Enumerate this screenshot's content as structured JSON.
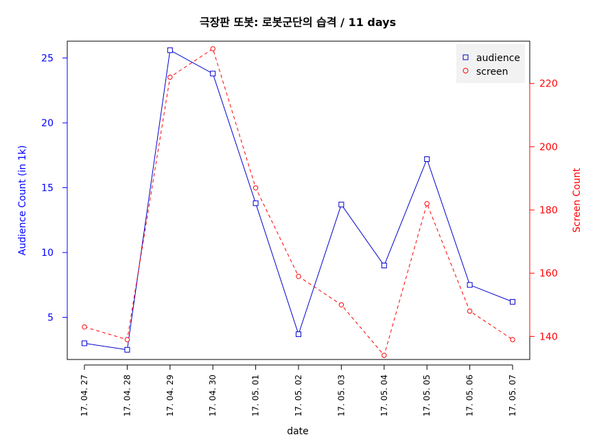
{
  "chart_data": {
    "type": "line",
    "title": "극장판 또봇: 로봇군단의 습격 / 11 days",
    "xlabel": "date",
    "ylabel_left": "Audience Count (in 1k)",
    "ylabel_right": "Screen Count",
    "categories": [
      "17. 04. 27",
      "17. 04. 28",
      "17. 04. 29",
      "17. 04. 30",
      "17. 05. 01",
      "17. 05. 02",
      "17. 05. 03",
      "17. 05. 04",
      "17. 05. 05",
      "17. 05. 06",
      "17. 05. 07"
    ],
    "series": [
      {
        "name": "audience",
        "axis": "left",
        "color": "#0000cc",
        "line_style": "solid",
        "marker": "square",
        "values": [
          3.0,
          2.5,
          25.6,
          23.8,
          13.8,
          3.7,
          13.7,
          9.0,
          17.2,
          7.5,
          6.2
        ]
      },
      {
        "name": "screen",
        "axis": "right",
        "color": "#ff0000",
        "line_style": "dashed",
        "marker": "circle",
        "values": [
          143,
          139,
          222,
          231,
          187,
          159,
          150,
          134,
          182,
          148,
          139
        ]
      }
    ],
    "y_left_ticks": [
      5,
      10,
      15,
      20,
      25
    ],
    "y_right_ticks": [
      140,
      160,
      180,
      200,
      220
    ],
    "y_left_range": [
      1.75,
      26.3
    ],
    "y_right_range": [
      132.7,
      233.4
    ],
    "legend_position": "top-right",
    "grid": false,
    "left_axis_color": "#0000ff",
    "right_axis_color": "#ff0000"
  }
}
